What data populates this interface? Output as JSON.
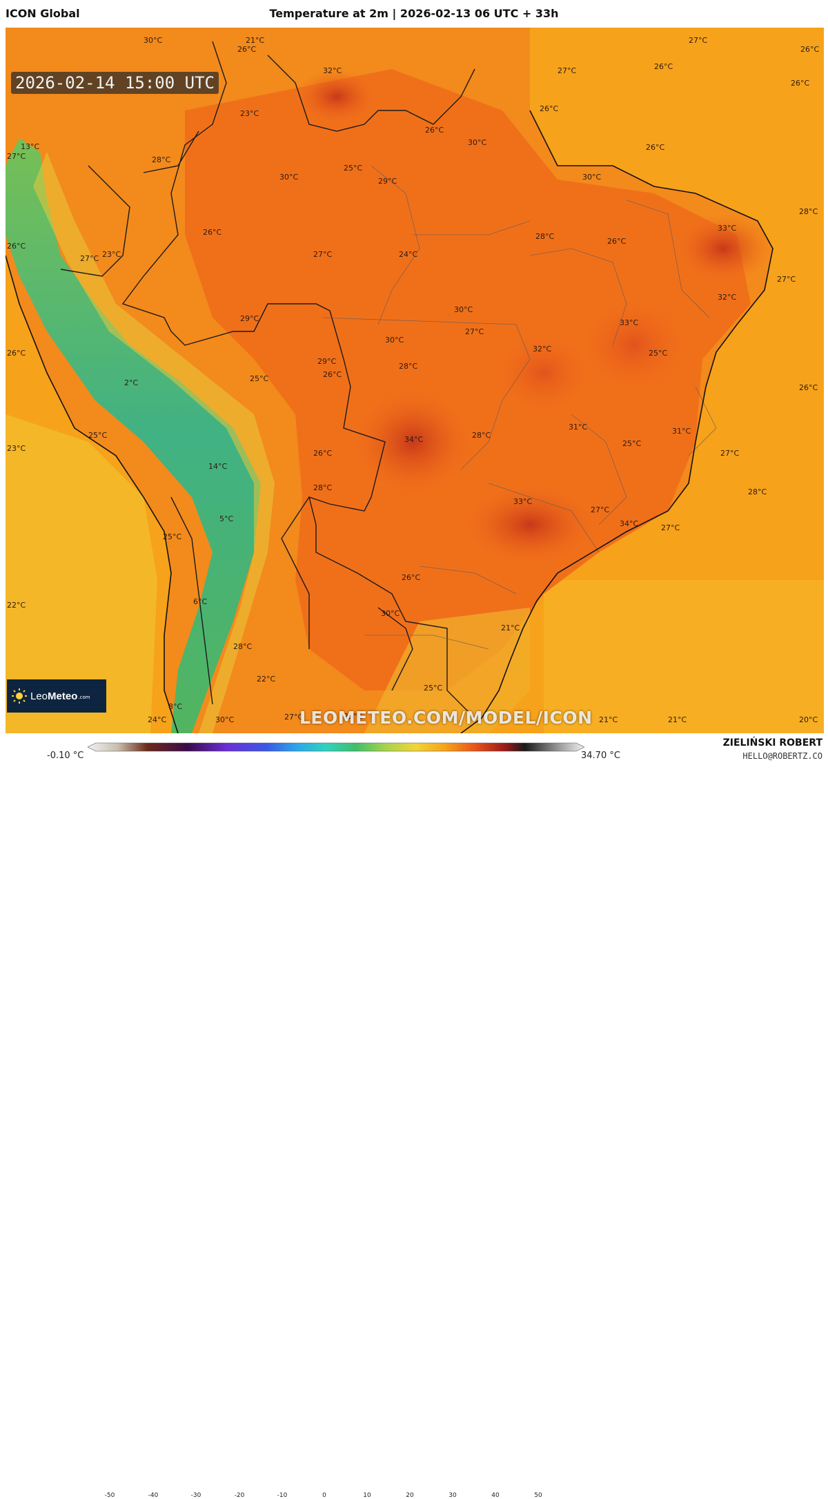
{
  "header": {
    "model_name": "ICON Global",
    "title": "Temperature at 2m | 2026-02-13 06 UTC + 33h"
  },
  "map": {
    "valid_time": "2026-02-14 15:00 UTC",
    "watermark": "LEOMETEO.COM/MODEL/ICON",
    "logo": {
      "name_light": "Leo",
      "name_bold": "Meteo",
      "domain": ".com"
    },
    "labels": [
      "30°C",
      "21°C",
      "26°C",
      "32°C",
      "27°C",
      "26°C",
      "26°C",
      "27°C",
      "26°C",
      "23°C",
      "26°C",
      "26°C",
      "30°C",
      "26°C",
      "13°C",
      "27°C",
      "28°C",
      "25°C",
      "30°C",
      "29°C",
      "30°C",
      "28°C",
      "26°C",
      "27°C",
      "24°C",
      "28°C",
      "26°C",
      "33°C",
      "27°C",
      "23°C",
      "26°C",
      "29°C",
      "30°C",
      "27°C",
      "32°C",
      "33°C",
      "32°C",
      "30°C",
      "26°C",
      "29°C",
      "28°C",
      "26°C",
      "25°C",
      "25°C",
      "27°C",
      "26°C",
      "2°C",
      "34°C",
      "28°C",
      "31°C",
      "25°C",
      "31°C",
      "25°C",
      "23°C",
      "26°C",
      "27°C",
      "14°C",
      "28°C",
      "33°C",
      "28°C",
      "5°C",
      "27°C",
      "34°C",
      "27°C",
      "25°C",
      "26°C",
      "22°C",
      "6°C",
      "30°C",
      "21°C",
      "28°C",
      "22°C",
      "25°C",
      "25°C",
      "8°C",
      "24°C",
      "30°C",
      "27°C",
      "21°C",
      "21°C",
      "20°C"
    ]
  },
  "legend": {
    "min_value": "-0.10 °C",
    "max_value": "34.70 °C",
    "ticks": [
      "-50",
      "-40",
      "-30",
      "-20",
      "-10",
      "0",
      "10",
      "20",
      "30",
      "40",
      "50"
    ]
  },
  "credits": {
    "author": "ZIELIŃSKI ROBERT",
    "email": "HELLO@ROBERTZ.CO"
  },
  "colors": {
    "ocean": "#f7a21b",
    "land_hot": "#f26b1a",
    "land_very_hot": "#d9431c",
    "andes_green": "#3fb86a",
    "coast_cool": "#f3c531",
    "border": "#1a1a1a"
  }
}
